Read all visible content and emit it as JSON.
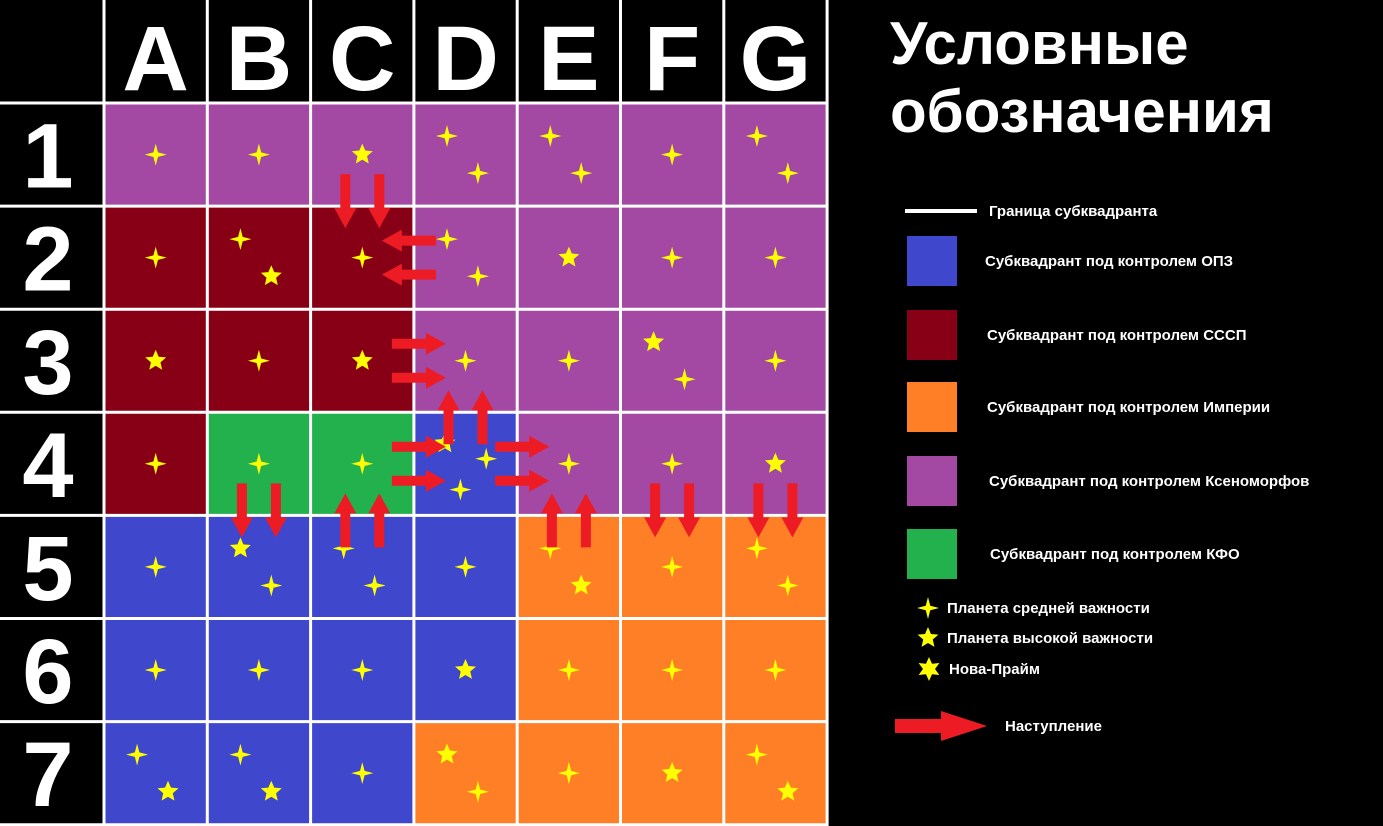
{
  "colors": {
    "opz": "#3f48cc",
    "sssp": "#880015",
    "empire": "#ff7f27",
    "xeno": "#a349a4",
    "kfo": "#22b14c",
    "planet": "#ffff00",
    "arrow": "#ed1c24",
    "grid": "#ffffff"
  },
  "grid": {
    "columns": [
      "A",
      "B",
      "C",
      "D",
      "E",
      "F",
      "G"
    ],
    "rows": [
      "1",
      "2",
      "3",
      "4",
      "5",
      "6",
      "7"
    ],
    "owners": [
      [
        "xeno",
        "xeno",
        "xeno",
        "xeno",
        "xeno",
        "xeno",
        "xeno"
      ],
      [
        "sssp",
        "sssp",
        "sssp",
        "xeno",
        "xeno",
        "xeno",
        "xeno"
      ],
      [
        "sssp",
        "sssp",
        "sssp",
        "xeno",
        "xeno",
        "xeno",
        "xeno"
      ],
      [
        "sssp",
        "kfo",
        "kfo",
        "opz",
        "xeno",
        "xeno",
        "xeno"
      ],
      [
        "opz",
        "opz",
        "opz",
        "opz",
        "empire",
        "empire",
        "empire"
      ],
      [
        "opz",
        "opz",
        "opz",
        "opz",
        "empire",
        "empire",
        "empire"
      ],
      [
        "opz",
        "opz",
        "opz",
        "empire",
        "empire",
        "empire",
        "empire"
      ]
    ]
  },
  "planets": [
    {
      "col": "A",
      "row": "1",
      "type": "medium"
    },
    {
      "col": "B",
      "row": "1",
      "type": "medium"
    },
    {
      "col": "C",
      "row": "1",
      "type": "high"
    },
    {
      "col": "D",
      "row": "1",
      "type": "medium"
    },
    {
      "col": "D",
      "row": "1",
      "type": "medium"
    },
    {
      "col": "E",
      "row": "1",
      "type": "medium"
    },
    {
      "col": "E",
      "row": "1",
      "type": "medium"
    },
    {
      "col": "F",
      "row": "1",
      "type": "medium"
    },
    {
      "col": "G",
      "row": "1",
      "type": "medium"
    },
    {
      "col": "G",
      "row": "1",
      "type": "medium"
    },
    {
      "col": "A",
      "row": "2",
      "type": "medium"
    },
    {
      "col": "B",
      "row": "2",
      "type": "medium"
    },
    {
      "col": "B",
      "row": "2",
      "type": "high"
    },
    {
      "col": "C",
      "row": "2",
      "type": "medium"
    },
    {
      "col": "D",
      "row": "2",
      "type": "medium"
    },
    {
      "col": "D",
      "row": "2",
      "type": "medium"
    },
    {
      "col": "E",
      "row": "2",
      "type": "high"
    },
    {
      "col": "F",
      "row": "2",
      "type": "medium"
    },
    {
      "col": "G",
      "row": "2",
      "type": "medium"
    },
    {
      "col": "A",
      "row": "3",
      "type": "high"
    },
    {
      "col": "B",
      "row": "3",
      "type": "medium"
    },
    {
      "col": "C",
      "row": "3",
      "type": "high"
    },
    {
      "col": "D",
      "row": "3",
      "type": "medium"
    },
    {
      "col": "E",
      "row": "3",
      "type": "medium"
    },
    {
      "col": "F",
      "row": "3",
      "type": "high"
    },
    {
      "col": "F",
      "row": "3",
      "type": "medium"
    },
    {
      "col": "G",
      "row": "3",
      "type": "medium"
    },
    {
      "col": "A",
      "row": "4",
      "type": "medium"
    },
    {
      "col": "B",
      "row": "4",
      "type": "medium"
    },
    {
      "col": "C",
      "row": "4",
      "type": "medium"
    },
    {
      "col": "D",
      "row": "4",
      "type": "high"
    },
    {
      "col": "D",
      "row": "4",
      "type": "medium"
    },
    {
      "col": "D",
      "row": "4",
      "type": "medium"
    },
    {
      "col": "E",
      "row": "4",
      "type": "medium"
    },
    {
      "col": "F",
      "row": "4",
      "type": "medium"
    },
    {
      "col": "G",
      "row": "4",
      "type": "high"
    },
    {
      "col": "A",
      "row": "5",
      "type": "medium"
    },
    {
      "col": "B",
      "row": "5",
      "type": "high"
    },
    {
      "col": "B",
      "row": "5",
      "type": "medium"
    },
    {
      "col": "C",
      "row": "5",
      "type": "medium"
    },
    {
      "col": "C",
      "row": "5",
      "type": "medium"
    },
    {
      "col": "D",
      "row": "5",
      "type": "medium"
    },
    {
      "col": "E",
      "row": "5",
      "type": "medium"
    },
    {
      "col": "E",
      "row": "5",
      "type": "high"
    },
    {
      "col": "F",
      "row": "5",
      "type": "medium"
    },
    {
      "col": "G",
      "row": "5",
      "type": "medium"
    },
    {
      "col": "G",
      "row": "5",
      "type": "medium"
    },
    {
      "col": "A",
      "row": "6",
      "type": "medium"
    },
    {
      "col": "B",
      "row": "6",
      "type": "medium"
    },
    {
      "col": "C",
      "row": "6",
      "type": "medium"
    },
    {
      "col": "D",
      "row": "6",
      "type": "high"
    },
    {
      "col": "E",
      "row": "6",
      "type": "medium"
    },
    {
      "col": "F",
      "row": "6",
      "type": "medium"
    },
    {
      "col": "G",
      "row": "6",
      "type": "medium"
    },
    {
      "col": "A",
      "row": "7",
      "type": "medium"
    },
    {
      "col": "A",
      "row": "7",
      "type": "high"
    },
    {
      "col": "B",
      "row": "7",
      "type": "medium"
    },
    {
      "col": "B",
      "row": "7",
      "type": "high"
    },
    {
      "col": "C",
      "row": "7",
      "type": "medium"
    },
    {
      "col": "D",
      "row": "7",
      "type": "high"
    },
    {
      "col": "D",
      "row": "7",
      "type": "medium"
    },
    {
      "col": "E",
      "row": "7",
      "type": "medium"
    },
    {
      "col": "F",
      "row": "7",
      "type": "high"
    },
    {
      "col": "G",
      "row": "7",
      "type": "medium"
    },
    {
      "col": "G",
      "row": "7",
      "type": "high"
    }
  ],
  "advances": [
    {
      "col": "C",
      "row": "1",
      "to": "C2"
    },
    {
      "col": "C",
      "row": "1",
      "to": "C2"
    },
    {
      "col": "D",
      "row": "2",
      "to": "C2"
    },
    {
      "col": "D",
      "row": "2",
      "to": "C2"
    },
    {
      "col": "C",
      "row": "3",
      "to": "D3"
    },
    {
      "col": "C",
      "row": "3",
      "to": "D3"
    },
    {
      "col": "D",
      "row": "4",
      "to": "D3"
    },
    {
      "col": "D",
      "row": "4",
      "to": "D3"
    },
    {
      "col": "C",
      "row": "4",
      "to": "D4"
    },
    {
      "col": "C",
      "row": "4",
      "to": "D4"
    },
    {
      "col": "D",
      "row": "4",
      "to": "E4"
    },
    {
      "col": "D",
      "row": "4",
      "to": "E4"
    },
    {
      "col": "B",
      "row": "4",
      "to": "B5"
    },
    {
      "col": "B",
      "row": "4",
      "to": "B5"
    },
    {
      "col": "C",
      "row": "5",
      "to": "C4"
    },
    {
      "col": "C",
      "row": "5",
      "to": "C4"
    },
    {
      "col": "E",
      "row": "5",
      "to": "E4"
    },
    {
      "col": "E",
      "row": "5",
      "to": "E4"
    },
    {
      "col": "F",
      "row": "4",
      "to": "F5"
    },
    {
      "col": "F",
      "row": "4",
      "to": "F5"
    },
    {
      "col": "G",
      "row": "4",
      "to": "G5"
    },
    {
      "col": "G",
      "row": "4",
      "to": "G5"
    }
  ],
  "legend": {
    "title_line1": "Условные",
    "title_line2": "обозначения",
    "border": "Граница субквадранта",
    "opz": "Субквадрант под контролем ОПЗ",
    "sssp": "Субквадрант под контролем СССП",
    "empire": "Субквадрант под контролем Империи",
    "xeno": "Субквадрант под контролем Ксеноморфов",
    "kfo": "Субквадрант под контролем КФО",
    "planet_medium": "Планета средней важности",
    "planet_high": "Планета высокой важности",
    "nova_prime": "Нова-Прайм",
    "advance": "Наступление"
  }
}
